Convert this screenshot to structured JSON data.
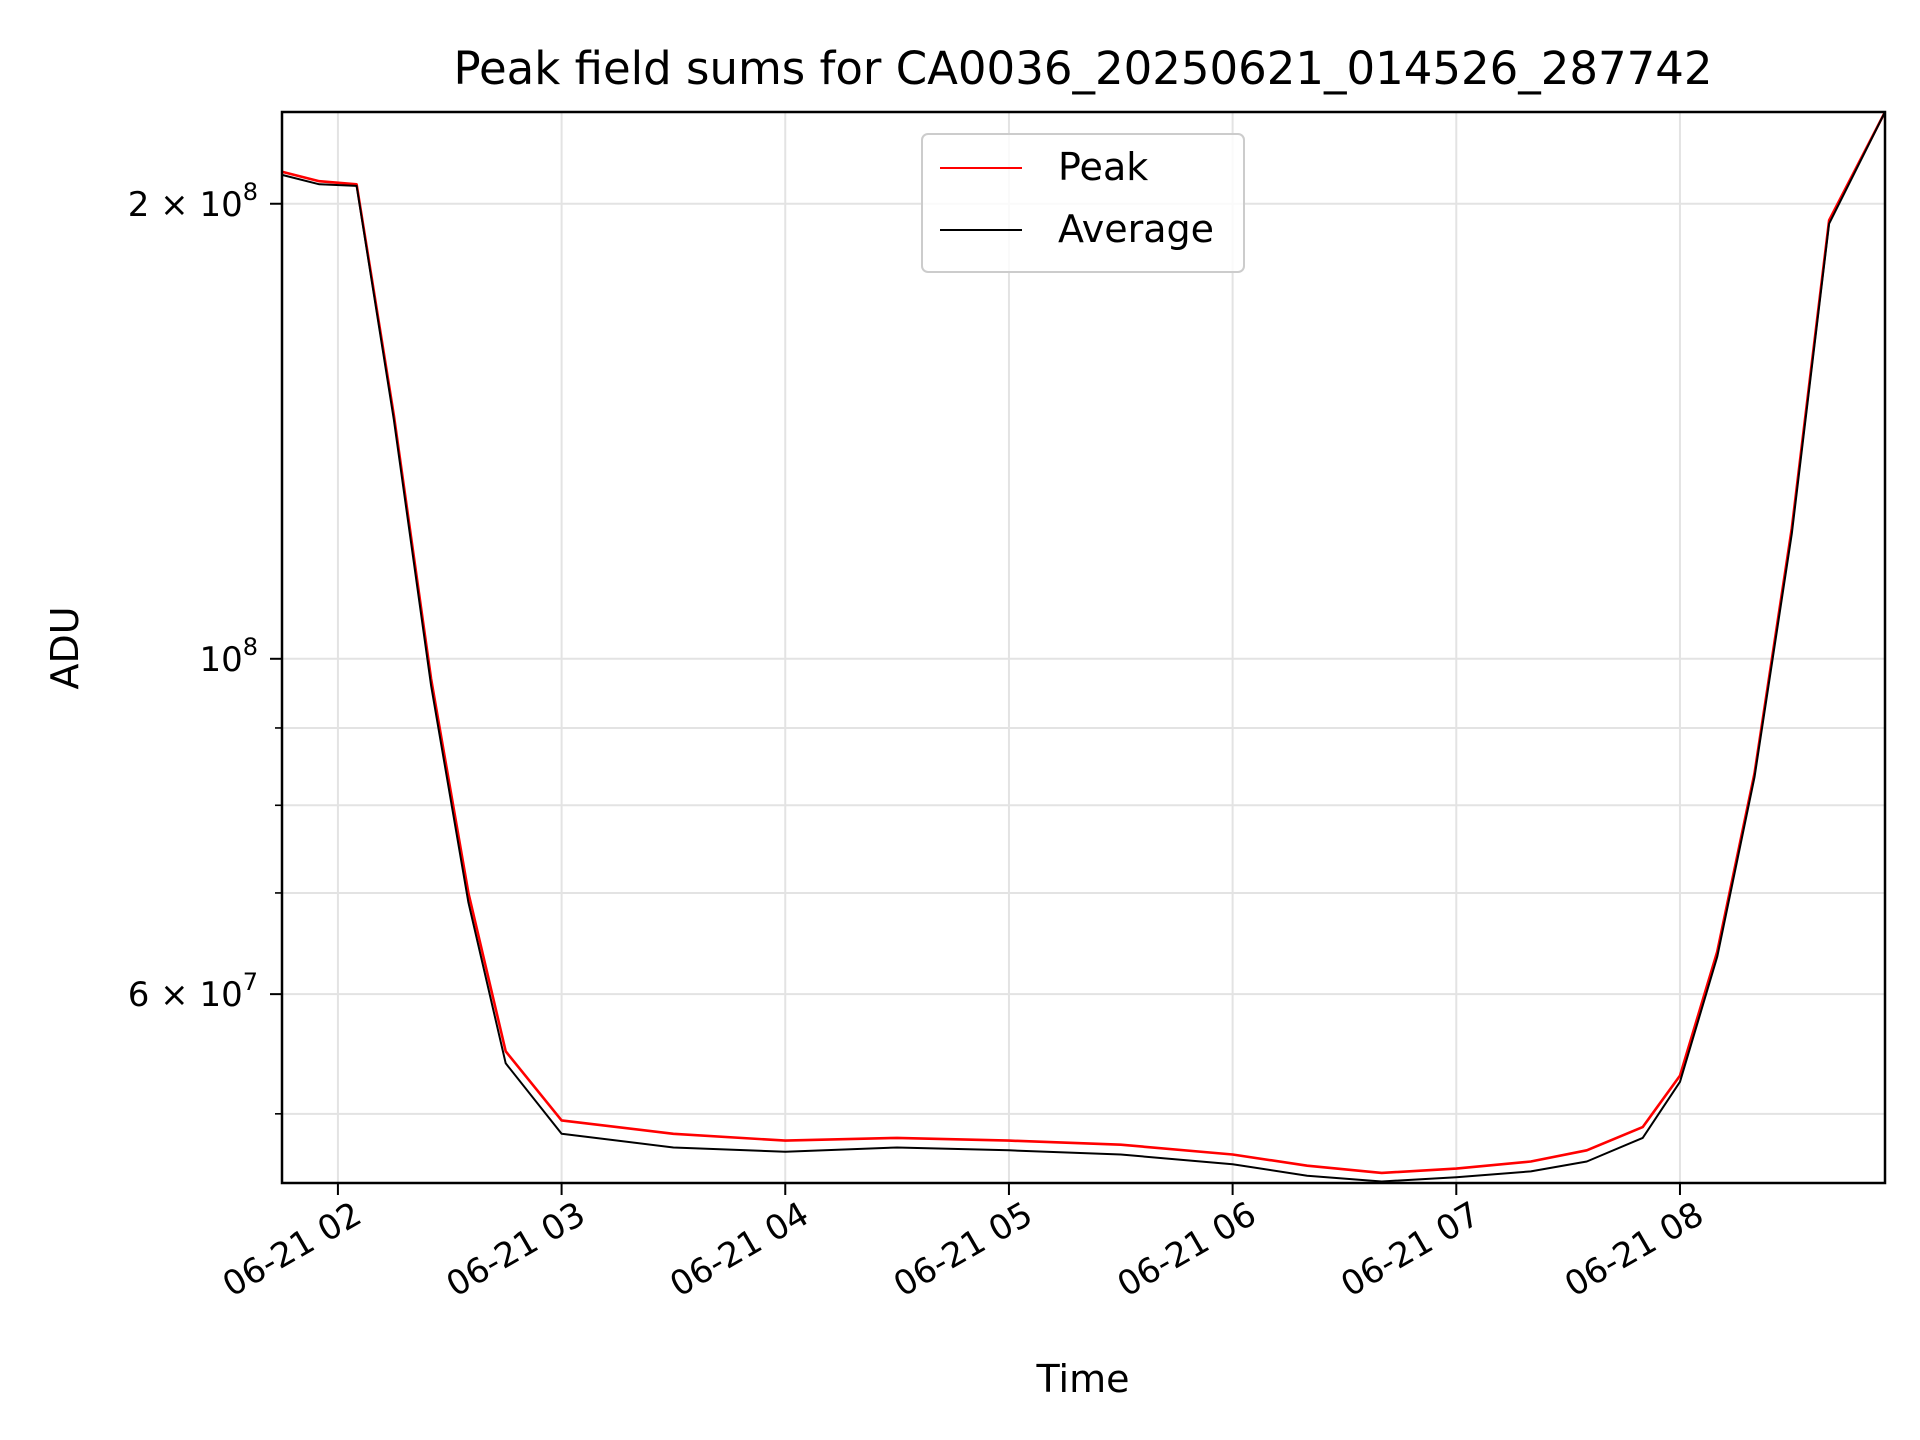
{
  "chart_data": {
    "type": "line",
    "title": "Peak field sums for CA0036_20250621_014526_287742",
    "xlabel": "Time",
    "ylabel": "ADU",
    "yscale": "log",
    "grid": true,
    "legend_position": "top-center",
    "xlim": [
      "2025-06-21 01:45",
      "2025-06-21 08:55"
    ],
    "ylim": [
      45000000,
      230000000
    ],
    "x_ticks": [
      "06-21 02",
      "06-21 03",
      "06-21 04",
      "06-21 05",
      "06-21 06",
      "06-21 07",
      "06-21 08"
    ],
    "y_ticks": [
      {
        "value": 200000000,
        "mantissa": "2",
        "exponent": "8"
      },
      {
        "value": 100000000,
        "mantissa": "",
        "exponent": "8"
      },
      {
        "value": 60000000,
        "mantissa": "6",
        "exponent": "7"
      }
    ],
    "x": [
      "2025-06-21 01:45",
      "2025-06-21 01:55",
      "2025-06-21 02:05",
      "2025-06-21 02:15",
      "2025-06-21 02:25",
      "2025-06-21 02:35",
      "2025-06-21 02:45",
      "2025-06-21 03:00",
      "2025-06-21 03:30",
      "2025-06-21 04:00",
      "2025-06-21 04:30",
      "2025-06-21 05:00",
      "2025-06-21 05:30",
      "2025-06-21 06:00",
      "2025-06-21 06:20",
      "2025-06-21 06:40",
      "2025-06-21 07:00",
      "2025-06-21 07:20",
      "2025-06-21 07:35",
      "2025-06-21 07:50",
      "2025-06-21 08:00",
      "2025-06-21 08:10",
      "2025-06-21 08:20",
      "2025-06-21 08:30",
      "2025-06-21 08:40",
      "2025-06-21 08:55"
    ],
    "series": [
      {
        "name": "Peak",
        "color": "#ff0000",
        "values": [
          210000000,
          207000000,
          206000000,
          145000000,
          97000000,
          70000000,
          55000000,
          49500000,
          48500000,
          48000000,
          48200000,
          48000000,
          47700000,
          47000000,
          46200000,
          45700000,
          46000000,
          46500000,
          47300000,
          49000000,
          53000000,
          64000000,
          84000000,
          122000000,
          195000000,
          230000000
        ]
      },
      {
        "name": "Average",
        "color": "#000000",
        "values": [
          209000000,
          206000000,
          205500000,
          144000000,
          96000000,
          69000000,
          54000000,
          48500000,
          47500000,
          47200000,
          47500000,
          47300000,
          47000000,
          46300000,
          45500000,
          45100000,
          45400000,
          45800000,
          46500000,
          48200000,
          52500000,
          63500000,
          83500000,
          121000000,
          194000000,
          230000000
        ]
      }
    ]
  }
}
